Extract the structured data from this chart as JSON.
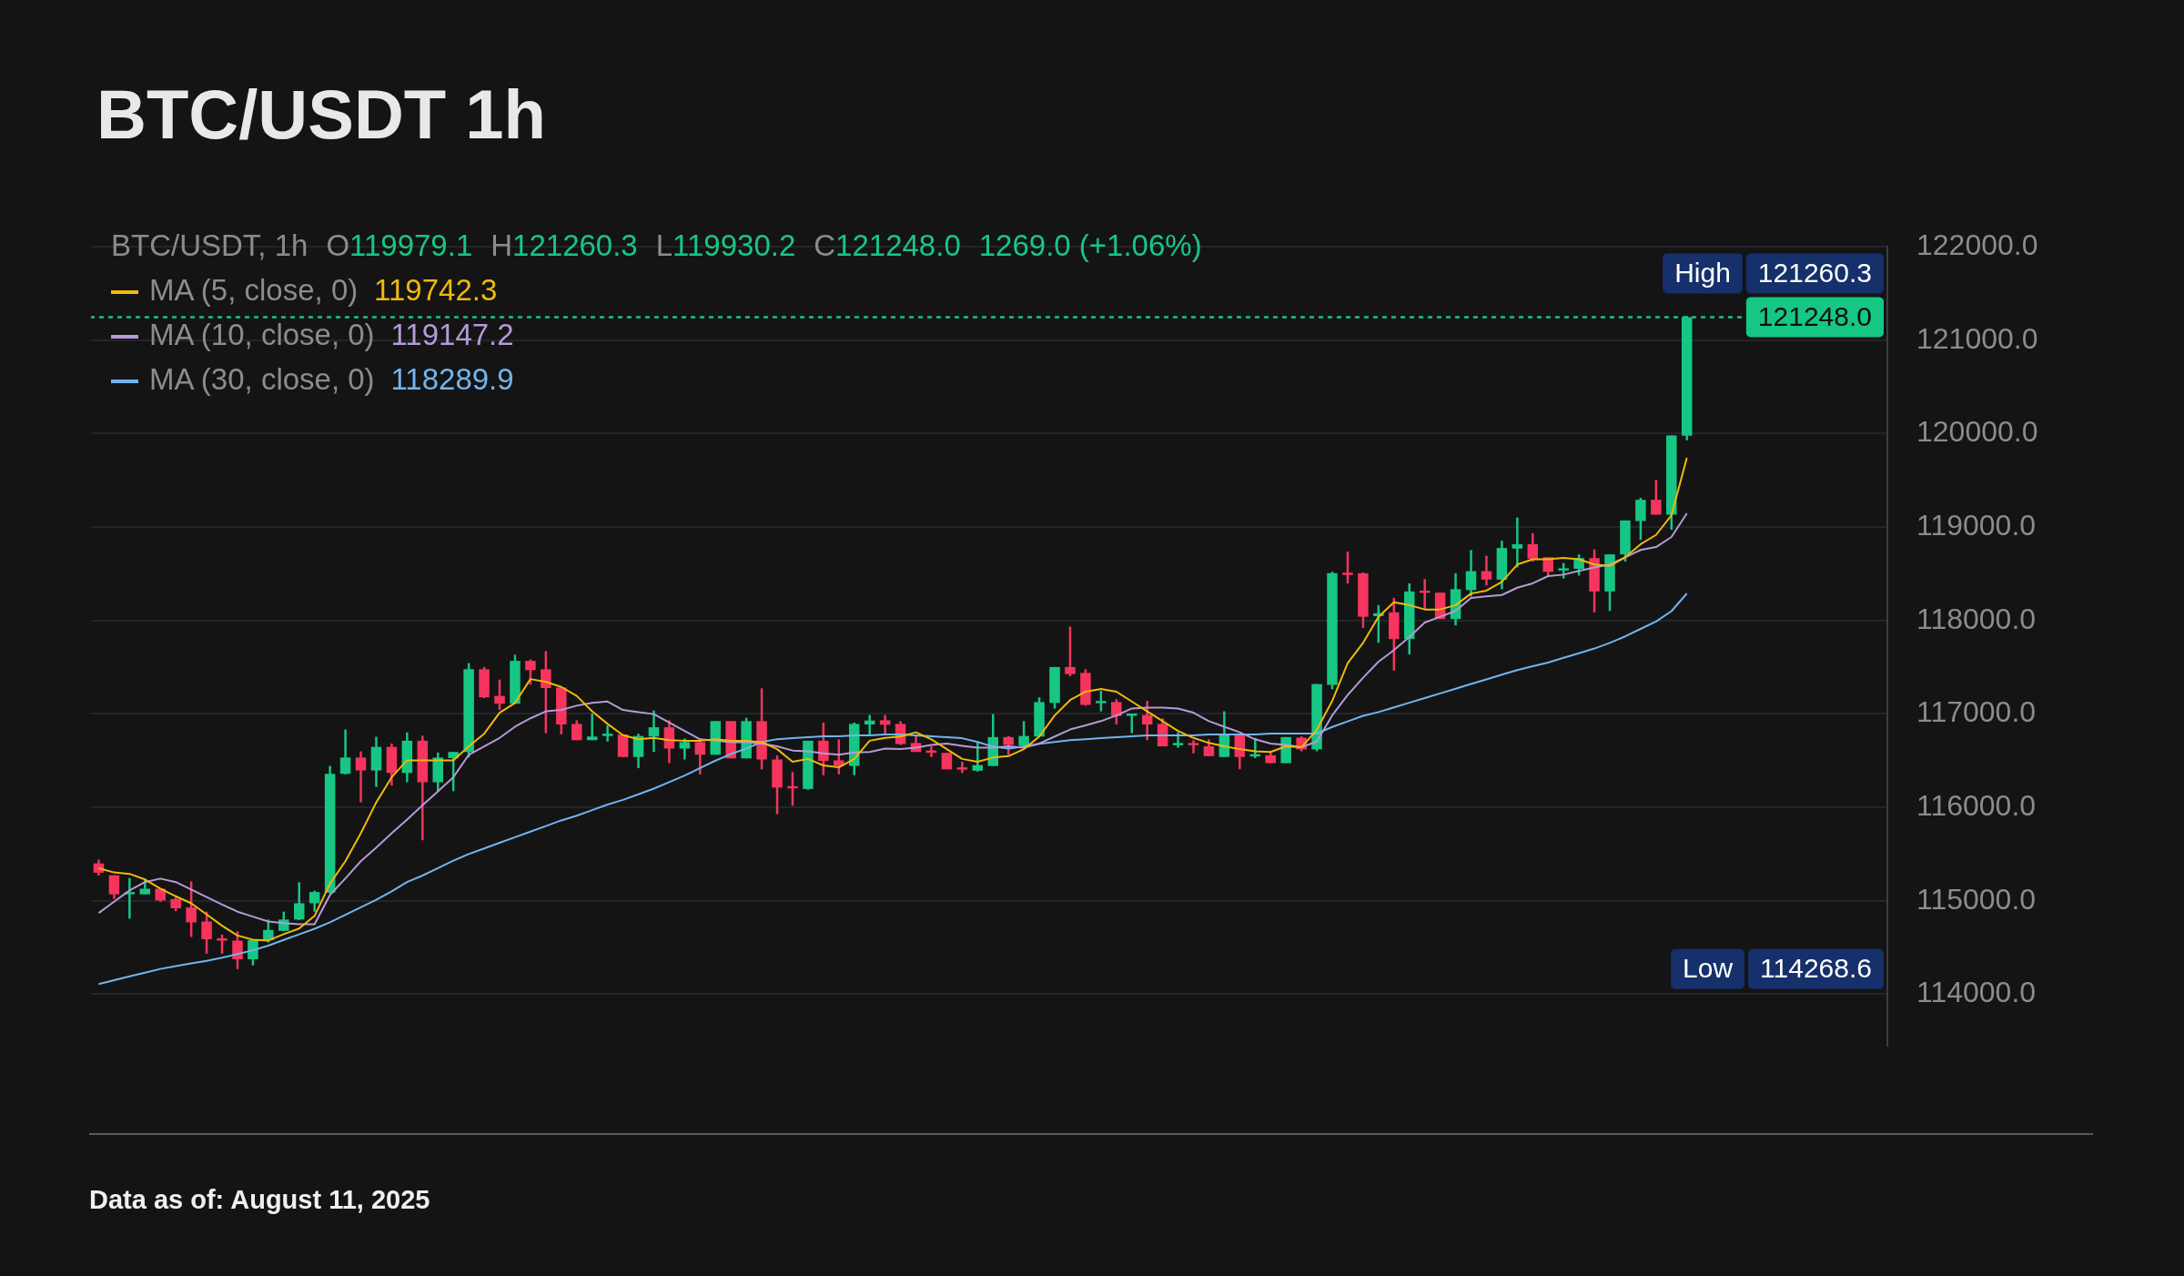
{
  "chart_data": {
    "type": "candlestick",
    "title": "BTC/USDT 1h",
    "categories": [
      null,
      null,
      null,
      null,
      null,
      null,
      null,
      null,
      null,
      null,
      null,
      null,
      null,
      null,
      null,
      null,
      null,
      null,
      null,
      null,
      null,
      null,
      null,
      null,
      null,
      null,
      null,
      null,
      null,
      null,
      null,
      null,
      null,
      null,
      null,
      null,
      null,
      null,
      null,
      null,
      null,
      null,
      null,
      null,
      null,
      null,
      null,
      null,
      null,
      null,
      null,
      null,
      null,
      null,
      null,
      null,
      null,
      null,
      null,
      null,
      null,
      null,
      null,
      null,
      null,
      null,
      null,
      null,
      null,
      null,
      null,
      null,
      null,
      null,
      null,
      null,
      null,
      null,
      null,
      null,
      null,
      null,
      null,
      null,
      null,
      null,
      null,
      null,
      null,
      null,
      null,
      null,
      null,
      null,
      null,
      null,
      null,
      null,
      null,
      null,
      null,
      null,
      null,
      null
    ],
    "ohlc": [
      [
        115400,
        115440,
        115270,
        115300
      ],
      [
        115273,
        115273,
        115018,
        115069
      ],
      [
        115078,
        115243,
        114808,
        115093
      ],
      [
        115069,
        115234,
        115069,
        115129
      ],
      [
        115129,
        115129,
        114988,
        115003
      ],
      [
        115018,
        115039,
        114889,
        114919
      ],
      [
        114928,
        115207,
        114613,
        114769
      ],
      [
        114778,
        114883,
        114433,
        114589
      ],
      [
        114598,
        114637,
        114433,
        114583
      ],
      [
        114574,
        114673,
        114268.6,
        114373
      ],
      [
        114373,
        114583,
        114307,
        114577
      ],
      [
        114577,
        114799,
        114553,
        114688
      ],
      [
        114679,
        114883,
        114673,
        114799
      ],
      [
        114799,
        115198,
        114793,
        114973
      ],
      [
        114973,
        115108,
        114883,
        115093
      ],
      [
        115087,
        116443,
        115078,
        116359
      ],
      [
        116359,
        116833,
        116353,
        116533
      ],
      [
        116533,
        116599,
        116053,
        116395
      ],
      [
        116395,
        116755,
        116218,
        116647
      ],
      [
        116647,
        116683,
        116233,
        116368
      ],
      [
        116368,
        116803,
        116269,
        116713
      ],
      [
        116713,
        116767,
        115648,
        116269
      ],
      [
        116269,
        116587,
        116173,
        116533
      ],
      [
        116527,
        116593,
        116173,
        116593
      ],
      [
        116593,
        117544,
        116533,
        117478
      ],
      [
        117478,
        117502,
        117169,
        117178
      ],
      [
        117193,
        117367,
        117043,
        117109
      ],
      [
        117109,
        117634,
        117109,
        117568
      ],
      [
        117568,
        117583,
        117313,
        117469
      ],
      [
        117478,
        117673,
        116794,
        117277
      ],
      [
        117283,
        117283,
        116782,
        116887
      ],
      [
        116893,
        116932,
        116719,
        116719
      ],
      [
        116719,
        117004,
        116719,
        116758
      ],
      [
        116773,
        116878,
        116704,
        116788
      ],
      [
        116779,
        116779,
        116539,
        116539
      ],
      [
        116539,
        116788,
        116419,
        116764
      ],
      [
        116758,
        117037,
        116593,
        116857
      ],
      [
        116857,
        116932,
        116473,
        116629
      ],
      [
        116629,
        116737,
        116512,
        116698
      ],
      [
        116698,
        116719,
        116353,
        116563
      ],
      [
        116563,
        116923,
        116563,
        116923
      ],
      [
        116923,
        116923,
        116524,
        116524
      ],
      [
        116524,
        116959,
        116524,
        116923
      ],
      [
        116923,
        117274,
        116407,
        116512
      ],
      [
        116512,
        116557,
        115927,
        116212
      ],
      [
        116227,
        116377,
        116017,
        116212
      ],
      [
        116197,
        116713,
        116188,
        116713
      ],
      [
        116713,
        116908,
        116344,
        116497
      ],
      [
        116503,
        116728,
        116353,
        116443
      ],
      [
        116443,
        116908,
        116344,
        116893
      ],
      [
        116887,
        116989,
        116773,
        116929
      ],
      [
        116932,
        116989,
        116773,
        116884
      ],
      [
        116893,
        116923,
        116668,
        116677
      ],
      [
        116689,
        116767,
        116593,
        116593
      ],
      [
        116608,
        116653,
        116539,
        116593
      ],
      [
        116584,
        116584,
        116407,
        116407
      ],
      [
        116428,
        116488,
        116368,
        116413
      ],
      [
        116392,
        116698,
        116383,
        116452
      ],
      [
        116443,
        116998,
        116443,
        116752
      ],
      [
        116752,
        116764,
        116563,
        116668
      ],
      [
        116659,
        116923,
        116653,
        116764
      ],
      [
        116758,
        117178,
        116758,
        117127
      ],
      [
        117118,
        117502,
        117058,
        117502
      ],
      [
        117502,
        117934,
        117403,
        117427
      ],
      [
        117439,
        117478,
        117088,
        117097
      ],
      [
        117127,
        117247,
        117028,
        117139
      ],
      [
        117127,
        117157,
        116887,
        116977
      ],
      [
        116989,
        117004,
        116794,
        117004
      ],
      [
        116989,
        117139,
        116719,
        116887
      ],
      [
        116893,
        116953,
        116653,
        116653
      ],
      [
        116677,
        116803,
        116638,
        116689
      ],
      [
        116689,
        116719,
        116578,
        116674
      ],
      [
        116653,
        116728,
        116548,
        116548
      ],
      [
        116539,
        117028,
        116539,
        116788
      ],
      [
        116788,
        116788,
        116407,
        116539
      ],
      [
        116557,
        116743,
        116527,
        116569
      ],
      [
        116557,
        116599,
        116473,
        116473
      ],
      [
        116473,
        116752,
        116473,
        116752
      ],
      [
        116746,
        116760,
        116600,
        116620
      ],
      [
        116620,
        117320,
        116600,
        117320
      ],
      [
        117311,
        118522,
        117264,
        118506
      ],
      [
        118512,
        118739,
        118397,
        118500
      ],
      [
        118506,
        118515,
        117922,
        118040
      ],
      [
        118047,
        118165,
        117761,
        118078
      ],
      [
        118087,
        118242,
        117466,
        117801
      ],
      [
        117801,
        118398,
        117637,
        118311
      ],
      [
        118320,
        118444,
        118118,
        118304
      ],
      [
        118298,
        118298,
        118016,
        118016
      ],
      [
        118016,
        118506,
        117947,
        118335
      ],
      [
        118326,
        118755,
        118258,
        118528
      ],
      [
        118528,
        118693,
        118376,
        118438
      ],
      [
        118438,
        118854,
        118335,
        118776
      ],
      [
        118770,
        119102,
        118568,
        118817
      ],
      [
        118817,
        118935,
        118630,
        118661
      ],
      [
        118677,
        118677,
        118475,
        118522
      ],
      [
        118544,
        118615,
        118450,
        118559
      ],
      [
        118553,
        118708,
        118481,
        118668
      ],
      [
        118668,
        118761,
        118087,
        118311
      ],
      [
        118311,
        118708,
        118103,
        118708
      ],
      [
        118708,
        119071,
        118630,
        119071
      ],
      [
        119065,
        119313,
        118863,
        119292
      ],
      [
        119292,
        119506,
        119133,
        119133
      ],
      [
        119133,
        119981,
        118971,
        119981
      ],
      [
        119979.1,
        121260.3,
        119930.2,
        121248.0
      ]
    ],
    "series": [
      {
        "name": "MA (5, close, 0)",
        "type": "line",
        "color": "#f0b90b",
        "values": [
          115348,
          115303,
          115288,
          115228,
          115129,
          115048,
          114973,
          114853,
          114733,
          114628,
          114583,
          114574,
          114643,
          114703,
          114838,
          115183,
          115423,
          115723,
          116053,
          116323,
          116503,
          116503,
          116503,
          116503,
          116653,
          116788,
          117013,
          117118,
          117373,
          117343,
          117289,
          117193,
          117028,
          116893,
          116773,
          116728,
          116743,
          116719,
          116713,
          116713,
          116728,
          116713,
          116713,
          116698,
          116623,
          116488,
          116518,
          116449,
          116428,
          116518,
          116713,
          116743,
          116758,
          116803,
          116728,
          116623,
          116518,
          116488,
          116533,
          116548,
          116623,
          116758,
          116983,
          117148,
          117238,
          117268,
          117238,
          117133,
          117028,
          116923,
          116818,
          116743,
          116689,
          116653,
          116623,
          116599,
          116593,
          116653,
          116643,
          116830,
          117140,
          117544,
          117761,
          118040,
          118196,
          118165,
          118118,
          118118,
          118165,
          118289,
          118320,
          118413,
          118599,
          118655,
          118655,
          118671,
          118655,
          118599,
          118584,
          118677,
          118817,
          118916,
          119127,
          119742.3
        ]
      },
      {
        "name": "MA (10, close, 0)",
        "type": "line",
        "color": "#b59ad6",
        "values": [
          114869,
          114990,
          115110,
          115200,
          115237,
          115200,
          115120,
          115040,
          114960,
          114883,
          114830,
          114778,
          114760,
          114748,
          114748,
          115063,
          115240,
          115423,
          115570,
          115723,
          115870,
          116023,
          116170,
          116323,
          116563,
          116653,
          116743,
          116863,
          116953,
          117028,
          117043,
          117088,
          117118,
          117133,
          117043,
          117019,
          116998,
          116908,
          116818,
          116728,
          116713,
          116698,
          116698,
          116683,
          116653,
          116608,
          116599,
          116578,
          116563,
          116587,
          116593,
          116629,
          116623,
          116638,
          116668,
          116683,
          116659,
          116638,
          116638,
          116653,
          116638,
          116683,
          116758,
          116833,
          116878,
          116923,
          116983,
          117058,
          117067,
          117067,
          117058,
          117013,
          116923,
          116863,
          116803,
          116728,
          116683,
          116668,
          116643,
          116705,
          116985,
          117202,
          117388,
          117559,
          117683,
          117823,
          117978,
          118040,
          118102,
          118242,
          118258,
          118273,
          118351,
          118398,
          118475,
          118491,
          118531,
          118568,
          118599,
          118677,
          118755,
          118786,
          118894,
          119147.2
        ]
      },
      {
        "name": "MA (30, close, 0)",
        "type": "line",
        "color": "#72b4f0",
        "values": [
          114108,
          114150,
          114190,
          114230,
          114270,
          114300,
          114330,
          114357,
          114390,
          114430,
          114470,
          114520,
          114580,
          114640,
          114700,
          114770,
          114850,
          114930,
          115010,
          115100,
          115200,
          115270,
          115350,
          115430,
          115500,
          115560,
          115620,
          115680,
          115740,
          115800,
          115860,
          115910,
          115970,
          116030,
          116080,
          116140,
          116200,
          116270,
          116340,
          116420,
          116500,
          116570,
          116630,
          116700,
          116730,
          116740,
          116750,
          116760,
          116760,
          116770,
          116770,
          116780,
          116780,
          116770,
          116760,
          116750,
          116740,
          116700,
          116650,
          116630,
          116650,
          116680,
          116700,
          116720,
          116730,
          116740,
          116750,
          116760,
          116770,
          116770,
          116770,
          116770,
          116780,
          116780,
          116780,
          116780,
          116790,
          116790,
          116790,
          116790,
          116860,
          116920,
          116980,
          117020,
          117070,
          117120,
          117170,
          117220,
          117270,
          117320,
          117370,
          117420,
          117470,
          117510,
          117550,
          117600,
          117650,
          117700,
          117760,
          117830,
          117910,
          117990,
          118100,
          118289.9
        ]
      }
    ],
    "ylim": [
      113450,
      122000
    ],
    "yticks": [
      {
        "value": 114000,
        "label": "114000.0"
      },
      {
        "value": 115000,
        "label": "115000.0"
      },
      {
        "value": 116000,
        "label": "116000.0"
      },
      {
        "value": 117000,
        "label": "117000.0"
      },
      {
        "value": 118000,
        "label": "118000.0"
      },
      {
        "value": 119000,
        "label": "119000.0"
      },
      {
        "value": 120000,
        "label": "120000.0"
      },
      {
        "value": 121000,
        "label": "121000.0"
      },
      {
        "value": 122000,
        "label": "122000.0"
      }
    ],
    "grid": "y",
    "legend": "top left",
    "tick_labels": "y",
    "marker": "none",
    "ref_lines": [
      {
        "axis": "y",
        "value": 121248.0,
        "label": "121248.0",
        "color": "#16c784",
        "line_style": "dotted"
      }
    ],
    "annotations": [
      "BTC/USDT, 1h",
      "O119979.1",
      "H121260.3",
      "L119930.2",
      "C121248.0",
      "1269.0 (+1.06%)",
      "119742.3",
      "119147.2",
      "118289.9",
      "High",
      "121260.3",
      "Low",
      "114268.6",
      "Data as of: August 11, 2025"
    ]
  }
}
